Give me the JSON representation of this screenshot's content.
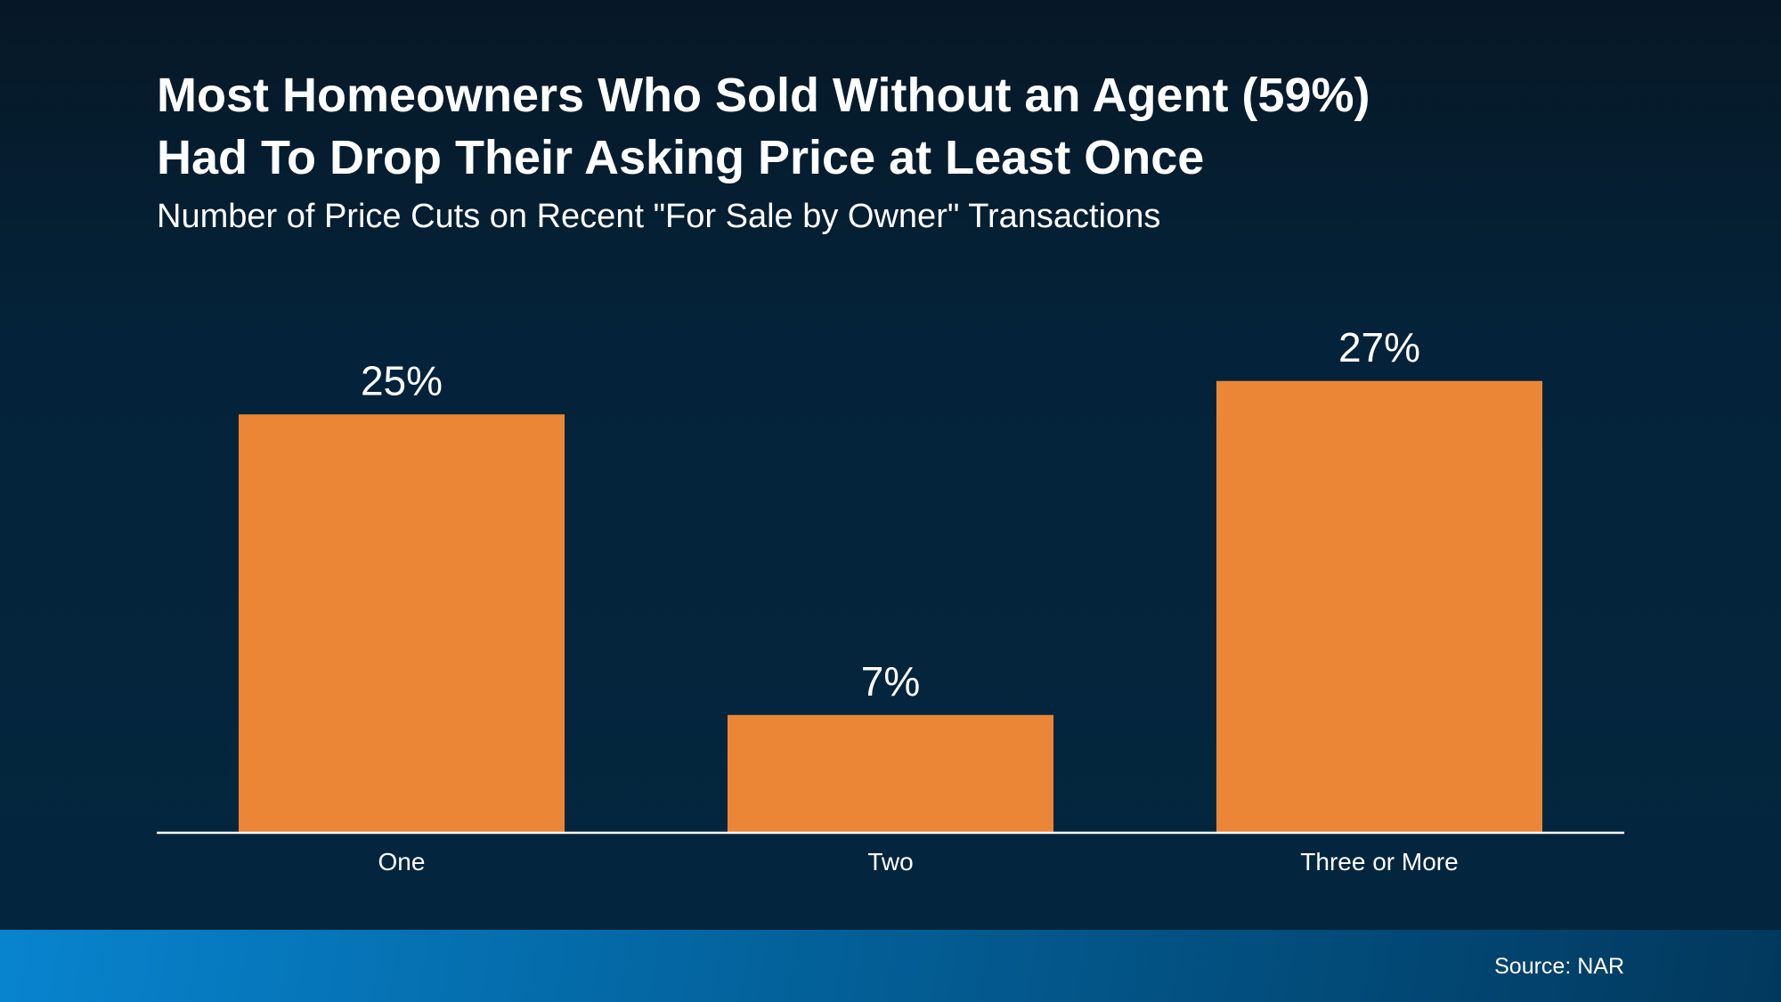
{
  "chart_data": {
    "type": "bar",
    "title": "Most Homeowners Who Sold Without an Agent (59%) Had To Drop Their Asking Price at Least Once",
    "title_lines": [
      "Most Homeowners Who Sold Without an Agent (59%)",
      "Had To Drop Their Asking Price at Least Once"
    ],
    "subtitle": "Number of Price Cuts on Recent \"For Sale by Owner\" Transactions",
    "categories": [
      "One",
      "Two",
      "Three or More"
    ],
    "values": [
      25,
      7,
      27
    ],
    "data_labels": [
      "25%",
      "7%",
      "27%"
    ],
    "xlabel": "",
    "ylabel": "",
    "ylim": [
      0,
      30
    ],
    "grid": false,
    "bar_color": "#eb8637"
  },
  "footer": {
    "source": "Source: NAR"
  }
}
